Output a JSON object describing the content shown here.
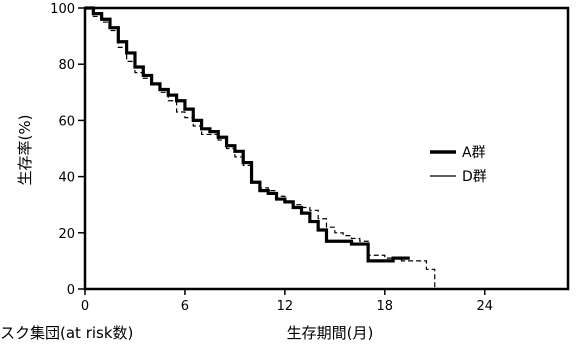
{
  "chart_data": {
    "type": "line",
    "title": "",
    "xlabel": "生存期間(月)",
    "ylabel": "生存率(%)",
    "bottom_left_label": "スク集団(at risk数)",
    "xlim": [
      0,
      29
    ],
    "ylim": [
      0,
      100
    ],
    "x_ticks": [
      0,
      6,
      12,
      18,
      24
    ],
    "y_ticks": [
      0,
      20,
      40,
      60,
      80,
      100
    ],
    "grid": false,
    "legend_position": "right",
    "series": [
      {
        "name": "A群",
        "color": "#000000",
        "style": "thick-solid",
        "x": [
          0,
          0.5,
          1,
          1.5,
          2,
          2.5,
          3,
          3.5,
          4,
          4.5,
          5,
          5.5,
          6,
          6.5,
          7,
          7.5,
          8,
          8.5,
          9,
          9.5,
          10,
          10.5,
          11,
          11.5,
          12,
          12.5,
          13,
          13.5,
          14,
          14.5,
          15,
          15.5,
          16,
          16.5,
          17,
          17.5,
          18,
          18.5,
          19,
          19.5
        ],
        "y": [
          100,
          98,
          96,
          93,
          88,
          84,
          79,
          76,
          73,
          71,
          69,
          67,
          64,
          60,
          57,
          56,
          54,
          51,
          49,
          45,
          38,
          35,
          34,
          32,
          31,
          29,
          27,
          24,
          21,
          17,
          17,
          17,
          16,
          16,
          10,
          10,
          10,
          11,
          11,
          11
        ]
      },
      {
        "name": "D群",
        "color": "#000000",
        "style": "thin-dashed",
        "x": [
          0,
          0.5,
          1,
          1.5,
          2,
          2.5,
          3,
          3.5,
          4,
          4.5,
          5,
          5.5,
          6,
          6.5,
          7,
          7.5,
          8,
          8.5,
          9,
          9.5,
          10,
          10.5,
          11,
          11.5,
          12,
          12.5,
          13,
          13.5,
          14,
          14.5,
          15,
          15.5,
          16,
          16.5,
          17,
          17.5,
          18,
          18.5,
          19,
          19.5,
          20,
          20.5,
          21
        ],
        "y": [
          100,
          97,
          95,
          92,
          86,
          81,
          77,
          75,
          73,
          70,
          67,
          63,
          61,
          58,
          55,
          55,
          53,
          50,
          47,
          44,
          38,
          36,
          35,
          33,
          31,
          30,
          29,
          28,
          25,
          22,
          20,
          19,
          18,
          17,
          12,
          12,
          11,
          11,
          10,
          10,
          10,
          7,
          0
        ]
      }
    ]
  }
}
